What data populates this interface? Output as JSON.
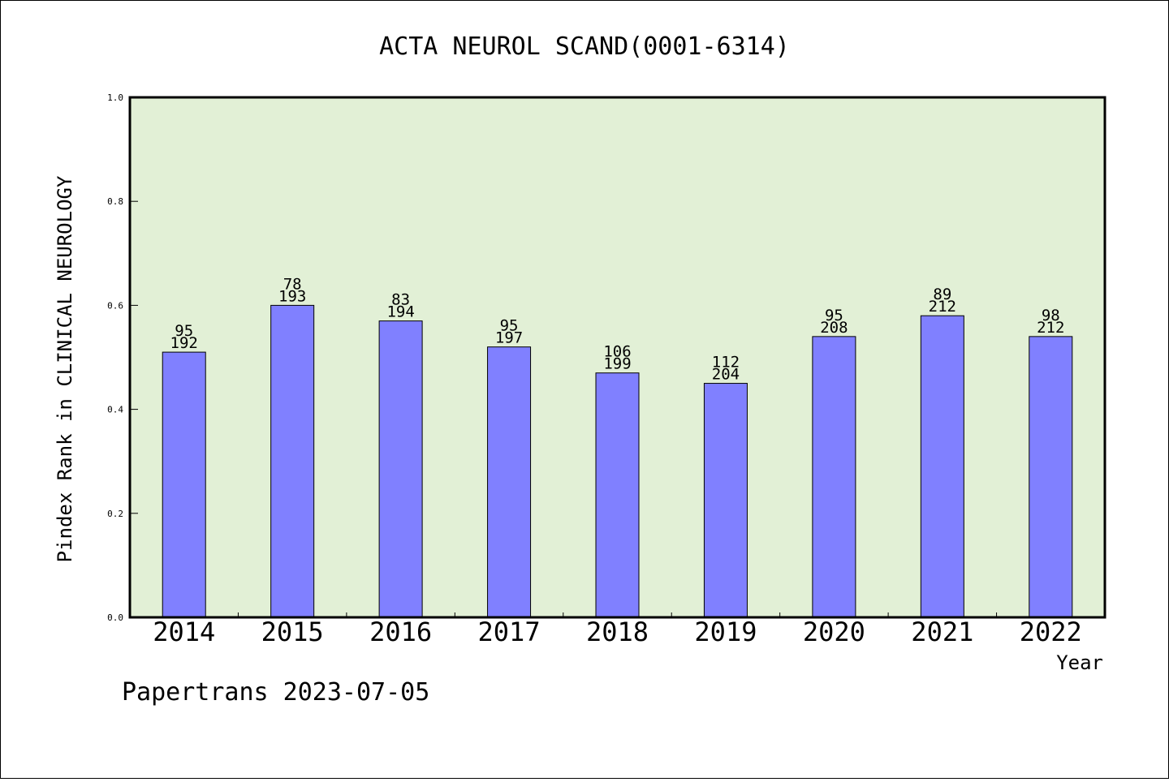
{
  "chart_data": {
    "type": "bar",
    "title": "ACTA NEUROL SCAND(0001-6314)",
    "xlabel": "Year",
    "ylabel": "Pindex Rank in CLINICAL NEUROLOGY",
    "ylim": [
      0.0,
      1.0
    ],
    "yticks": [
      "0.0",
      "0.2",
      "0.4",
      "0.6",
      "0.8",
      "1.0"
    ],
    "categories": [
      "2014",
      "2015",
      "2016",
      "2017",
      "2018",
      "2019",
      "2020",
      "2021",
      "2022"
    ],
    "values": [
      0.51,
      0.6,
      0.57,
      0.52,
      0.47,
      0.45,
      0.54,
      0.58,
      0.54
    ],
    "rank_labels": [
      "95",
      "78",
      "83",
      "95",
      "106",
      "112",
      "95",
      "89",
      "98"
    ],
    "total_labels": [
      "192",
      "193",
      "194",
      "197",
      "199",
      "204",
      "208",
      "212",
      "212"
    ],
    "grid": false,
    "legend": "none",
    "plot_background": "#e2f0d6",
    "bar_color": "#8080ff",
    "bar_edge_color": "#000000"
  },
  "footer": {
    "text": "Papertrans 2023-07-05"
  }
}
